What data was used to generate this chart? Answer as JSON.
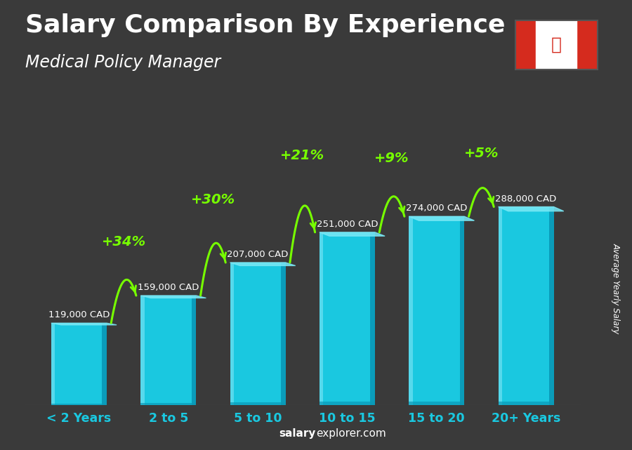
{
  "categories": [
    "< 2 Years",
    "2 to 5",
    "5 to 10",
    "10 to 15",
    "15 to 20",
    "20+ Years"
  ],
  "values": [
    119000,
    159000,
    207000,
    251000,
    274000,
    288000
  ],
  "labels": [
    "119,000 CAD",
    "159,000 CAD",
    "207,000 CAD",
    "251,000 CAD",
    "274,000 CAD",
    "288,000 CAD"
  ],
  "pct_changes": [
    "+34%",
    "+30%",
    "+21%",
    "+9%",
    "+5%"
  ],
  "bar_color_face": "#1ac8e0",
  "bar_color_light": "#5ddcee",
  "bar_color_dark": "#0a9ab8",
  "bar_top_color": "#7ae8f5",
  "title": "Salary Comparison By Experience",
  "subtitle": "Medical Policy Manager",
  "ylabel": "Average Yearly Salary",
  "footer_normal": "explorer.com",
  "footer_bold": "salary",
  "background_color": "#3a3a3a",
  "title_color": "#ffffff",
  "subtitle_color": "#ffffff",
  "label_color": "#ffffff",
  "pct_color": "#77ff00",
  "cat_color": "#1ac8e0",
  "ylim_max": 340000,
  "title_fontsize": 26,
  "subtitle_fontsize": 17,
  "arrow_color": "#77ff00",
  "flag_red": "#d52b1e",
  "cat_fontsize": 12.5
}
